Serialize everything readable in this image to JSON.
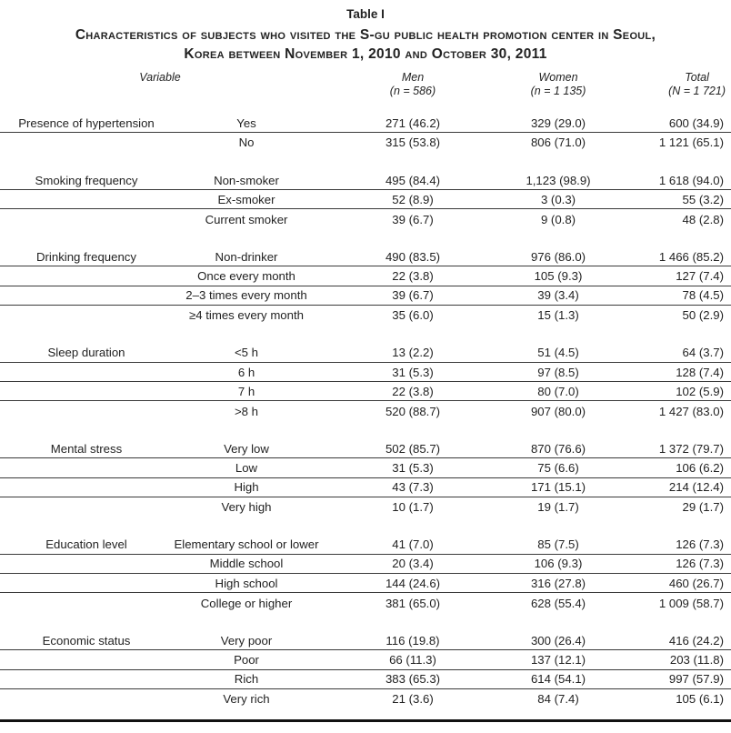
{
  "table": {
    "label": "Table I",
    "caption_line1": "Characteristics of subjects who visited the S-gu public health promotion center in Seoul,",
    "caption_line2": "Korea between November 1, 2010 and October 30, 2011",
    "headers": {
      "variable": "Variable",
      "men_label": "Men",
      "men_n": "(n = 586)",
      "women_label": "Women",
      "women_n": "(n = 1 135)",
      "total_label": "Total",
      "total_n": "(N = 1 721)"
    },
    "groups": [
      {
        "variable": "Presence of hypertension",
        "rows": [
          [
            "Yes",
            "271 (46.2)",
            "329 (29.0)",
            "600 (34.9)"
          ],
          [
            "No",
            "315 (53.8)",
            "806 (71.0)",
            "1 121 (65.1)"
          ]
        ]
      },
      {
        "variable": "Smoking frequency",
        "rows": [
          [
            "Non-smoker",
            "495 (84.4)",
            "1,123 (98.9)",
            "1 618 (94.0)"
          ],
          [
            "Ex-smoker",
            "52 (8.9)",
            "3 (0.3)",
            "55 (3.2)"
          ],
          [
            "Current smoker",
            "39 (6.7)",
            "9 (0.8)",
            "48 (2.8)"
          ]
        ]
      },
      {
        "variable": "Drinking frequency",
        "rows": [
          [
            "Non-drinker",
            "490 (83.5)",
            "976 (86.0)",
            "1 466 (85.2)"
          ],
          [
            "Once every month",
            "22 (3.8)",
            "105 (9.3)",
            "127 (7.4)"
          ],
          [
            "2–3 times every month",
            "39 (6.7)",
            "39 (3.4)",
            "78 (4.5)"
          ],
          [
            "≥4 times every month",
            "35 (6.0)",
            "15 (1.3)",
            "50 (2.9)"
          ]
        ]
      },
      {
        "variable": "Sleep duration",
        "rows": [
          [
            "<5 h",
            "13 (2.2)",
            "51 (4.5)",
            "64 (3.7)"
          ],
          [
            "6 h",
            "31 (5.3)",
            "97 (8.5)",
            "128 (7.4)"
          ],
          [
            "7 h",
            "22 (3.8)",
            "80 (7.0)",
            "102 (5.9)"
          ],
          [
            ">8 h",
            "520 (88.7)",
            "907 (80.0)",
            "1 427 (83.0)"
          ]
        ]
      },
      {
        "variable": "Mental stress",
        "rows": [
          [
            "Very low",
            "502 (85.7)",
            "870 (76.6)",
            "1 372 (79.7)"
          ],
          [
            "Low",
            "31 (5.3)",
            "75 (6.6)",
            "106 (6.2)"
          ],
          [
            "High",
            "43 (7.3)",
            "171 (15.1)",
            "214 (12.4)"
          ],
          [
            "Very high",
            "10 (1.7)",
            "19 (1.7)",
            "29 (1.7)"
          ]
        ]
      },
      {
        "variable": "Education level",
        "rows": [
          [
            "Elementary school or lower",
            "41 (7.0)",
            "85 (7.5)",
            "126 (7.3)"
          ],
          [
            "Middle school",
            "20 (3.4)",
            "106 (9.3)",
            "126 (7.3)"
          ],
          [
            "High school",
            "144 (24.6)",
            "316 (27.8)",
            "460 (26.7)"
          ],
          [
            "College or higher",
            "381 (65.0)",
            "628 (55.4)",
            "1 009 (58.7)"
          ]
        ]
      },
      {
        "variable": "Economic status",
        "rows": [
          [
            "Very poor",
            "116 (19.8)",
            "300 (26.4)",
            "416 (24.2)"
          ],
          [
            "Poor",
            "66 (11.3)",
            "137 (12.1)",
            "203 (11.8)"
          ],
          [
            "Rich",
            "383 (65.3)",
            "614 (54.1)",
            "997 (57.9)"
          ],
          [
            "Very rich",
            "21 (3.6)",
            "84 (7.4)",
            "105 (6.1)"
          ]
        ]
      }
    ],
    "colors": {
      "background": "#ffffff",
      "text": "#222222",
      "row_rule": "#3a3a3a",
      "bottom_rule": "#111111"
    }
  }
}
